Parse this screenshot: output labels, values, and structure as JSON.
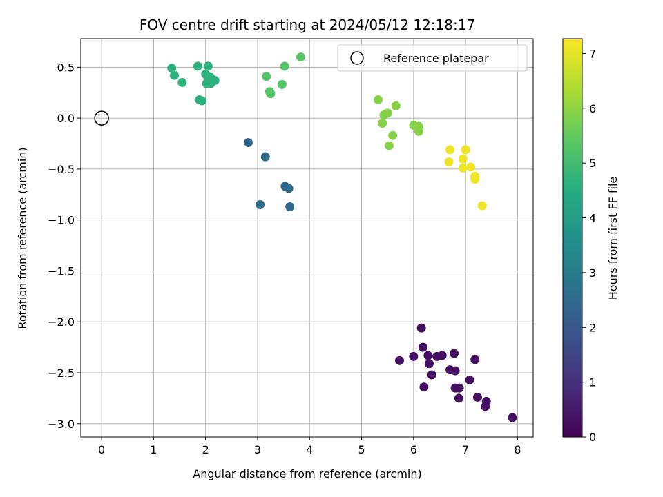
{
  "chart_data": {
    "type": "scatter",
    "title": "FOV centre drift starting at 2024/05/12 12:18:17",
    "xlabel": "Angular distance from reference (arcmin)",
    "ylabel": "Rotation from reference (arcmin)",
    "xlim": [
      -0.4,
      8.3
    ],
    "ylim": [
      -3.13,
      0.78
    ],
    "xticks": [
      0,
      1,
      2,
      3,
      4,
      5,
      6,
      7,
      8
    ],
    "xtick_labels": [
      "0",
      "1",
      "2",
      "3",
      "4",
      "5",
      "6",
      "7",
      "8"
    ],
    "yticks": [
      0.5,
      0.0,
      -0.5,
      -1.0,
      -1.5,
      -2.0,
      -2.5,
      -3.0
    ],
    "ytick_labels": [
      "0.5",
      "0.0",
      "−0.5",
      "−1.0",
      "−1.5",
      "−2.0",
      "−2.5",
      "−3.0"
    ],
    "grid": true,
    "colormap": "viridis",
    "colorbar": {
      "label": "Hours from first FF file",
      "range": [
        0,
        7.27
      ],
      "ticks": [
        0,
        1,
        2,
        3,
        4,
        5,
        6,
        7
      ],
      "tick_labels": [
        "0",
        "1",
        "2",
        "3",
        "4",
        "5",
        "6",
        "7"
      ]
    },
    "legend": {
      "position": "top-right",
      "entries": [
        "Reference platepar"
      ]
    },
    "reference_point": {
      "label": "Reference platepar",
      "x": 0,
      "y": 0
    },
    "points": [
      {
        "x": 6.15,
        "y": -2.06,
        "h": 0.3
      },
      {
        "x": 6.18,
        "y": -2.25,
        "h": 0.3
      },
      {
        "x": 5.73,
        "y": -2.38,
        "h": 0.3
      },
      {
        "x": 6.0,
        "y": -2.34,
        "h": 0.3
      },
      {
        "x": 6.28,
        "y": -2.33,
        "h": 0.3
      },
      {
        "x": 6.3,
        "y": -2.41,
        "h": 0.3
      },
      {
        "x": 6.45,
        "y": -2.34,
        "h": 0.3
      },
      {
        "x": 6.55,
        "y": -2.33,
        "h": 0.3
      },
      {
        "x": 6.78,
        "y": -2.31,
        "h": 0.3
      },
      {
        "x": 7.18,
        "y": -2.37,
        "h": 0.3
      },
      {
        "x": 6.35,
        "y": -2.52,
        "h": 0.3
      },
      {
        "x": 6.7,
        "y": -2.47,
        "h": 0.3
      },
      {
        "x": 6.8,
        "y": -2.48,
        "h": 0.3
      },
      {
        "x": 7.08,
        "y": -2.57,
        "h": 0.3
      },
      {
        "x": 6.2,
        "y": -2.64,
        "h": 0.3
      },
      {
        "x": 6.8,
        "y": -2.65,
        "h": 0.3
      },
      {
        "x": 6.88,
        "y": -2.65,
        "h": 0.3
      },
      {
        "x": 6.87,
        "y": -2.75,
        "h": 0.3
      },
      {
        "x": 7.23,
        "y": -2.74,
        "h": 0.3
      },
      {
        "x": 7.4,
        "y": -2.78,
        "h": 0.3
      },
      {
        "x": 7.38,
        "y": -2.83,
        "h": 0.3
      },
      {
        "x": 7.9,
        "y": -2.94,
        "h": 0.3
      },
      {
        "x": 2.82,
        "y": -0.24,
        "h": 2.4
      },
      {
        "x": 3.15,
        "y": -0.38,
        "h": 2.5
      },
      {
        "x": 3.53,
        "y": -0.67,
        "h": 2.5
      },
      {
        "x": 3.6,
        "y": -0.69,
        "h": 2.5
      },
      {
        "x": 3.05,
        "y": -0.85,
        "h": 2.5
      },
      {
        "x": 3.62,
        "y": -0.87,
        "h": 2.5
      },
      {
        "x": 1.35,
        "y": 0.49,
        "h": 4.6
      },
      {
        "x": 1.4,
        "y": 0.42,
        "h": 4.6
      },
      {
        "x": 1.55,
        "y": 0.35,
        "h": 4.6
      },
      {
        "x": 1.85,
        "y": 0.51,
        "h": 4.6
      },
      {
        "x": 2.05,
        "y": 0.51,
        "h": 4.6
      },
      {
        "x": 2.0,
        "y": 0.43,
        "h": 4.6
      },
      {
        "x": 2.1,
        "y": 0.4,
        "h": 4.6
      },
      {
        "x": 2.05,
        "y": 0.36,
        "h": 4.6
      },
      {
        "x": 2.18,
        "y": 0.37,
        "h": 4.6
      },
      {
        "x": 2.02,
        "y": 0.34,
        "h": 4.6
      },
      {
        "x": 2.1,
        "y": 0.34,
        "h": 4.6
      },
      {
        "x": 1.88,
        "y": 0.18,
        "h": 4.6
      },
      {
        "x": 1.93,
        "y": 0.17,
        "h": 4.6
      },
      {
        "x": 3.17,
        "y": 0.41,
        "h": 5.3
      },
      {
        "x": 3.52,
        "y": 0.51,
        "h": 5.3
      },
      {
        "x": 3.83,
        "y": 0.6,
        "h": 5.3
      },
      {
        "x": 3.47,
        "y": 0.33,
        "h": 5.3
      },
      {
        "x": 3.23,
        "y": 0.26,
        "h": 5.3
      },
      {
        "x": 3.25,
        "y": 0.24,
        "h": 5.3
      },
      {
        "x": 5.32,
        "y": 0.18,
        "h": 5.9
      },
      {
        "x": 5.66,
        "y": 0.12,
        "h": 5.9
      },
      {
        "x": 5.5,
        "y": 0.05,
        "h": 5.9
      },
      {
        "x": 5.43,
        "y": 0.03,
        "h": 5.9
      },
      {
        "x": 5.4,
        "y": -0.05,
        "h": 5.9
      },
      {
        "x": 6.0,
        "y": -0.07,
        "h": 5.9
      },
      {
        "x": 6.1,
        "y": -0.08,
        "h": 5.9
      },
      {
        "x": 6.1,
        "y": -0.13,
        "h": 5.9
      },
      {
        "x": 5.6,
        "y": -0.17,
        "h": 5.9
      },
      {
        "x": 5.53,
        "y": -0.27,
        "h": 5.9
      },
      {
        "x": 6.7,
        "y": -0.31,
        "h": 7.1
      },
      {
        "x": 7.0,
        "y": -0.31,
        "h": 7.1
      },
      {
        "x": 6.95,
        "y": -0.4,
        "h": 7.1
      },
      {
        "x": 6.68,
        "y": -0.43,
        "h": 7.1
      },
      {
        "x": 7.1,
        "y": -0.48,
        "h": 7.1
      },
      {
        "x": 6.95,
        "y": -0.49,
        "h": 7.1
      },
      {
        "x": 7.18,
        "y": -0.57,
        "h": 7.1
      },
      {
        "x": 7.18,
        "y": -0.6,
        "h": 7.1
      },
      {
        "x": 7.32,
        "y": -0.86,
        "h": 7.1
      }
    ]
  }
}
